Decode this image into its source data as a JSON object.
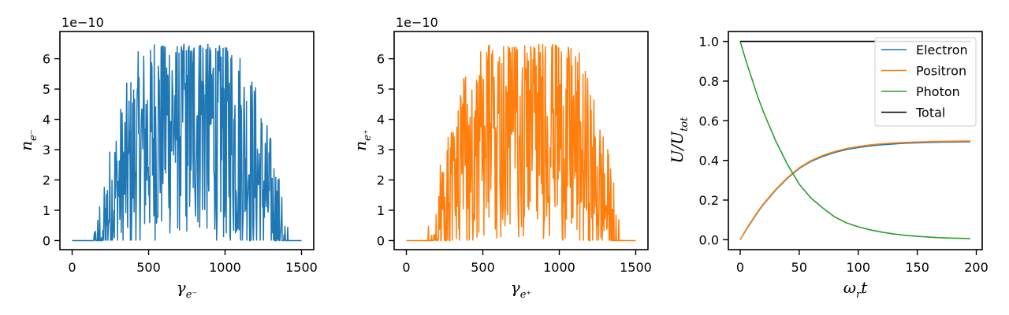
{
  "chart_data": [
    {
      "type": "line",
      "xlabel": "γ_e⁻",
      "ylabel": "n_e⁻",
      "xlim": [
        -80,
        1580
      ],
      "ylim": [
        -0.3,
        6.9
      ],
      "xticks": [
        0,
        500,
        1000,
        1500
      ],
      "yticks": [
        0,
        1,
        2,
        3,
        4,
        5,
        6
      ],
      "offset_text": "1e−10",
      "color": "#1f77b4",
      "series": [
        {
          "x_range": [
            0,
            1500
          ],
          "y_peak": 6.5,
          "shape": "noisy-bell"
        }
      ]
    },
    {
      "type": "line",
      "xlabel": "γ_e⁺",
      "ylabel": "n_e⁺",
      "xlim": [
        -80,
        1580
      ],
      "ylim": [
        -0.3,
        6.9
      ],
      "xticks": [
        0,
        500,
        1000,
        1500
      ],
      "yticks": [
        0,
        1,
        2,
        3,
        4,
        5,
        6
      ],
      "offset_text": "1e−10",
      "color": "#ff7f0e",
      "series": [
        {
          "x_range": [
            0,
            1500
          ],
          "y_peak": 6.5,
          "shape": "noisy-bell"
        }
      ]
    },
    {
      "type": "line",
      "xlabel": "ω_r t",
      "ylabel": "U/U_tot",
      "xlim": [
        -10,
        205
      ],
      "ylim": [
        -0.05,
        1.05
      ],
      "xticks": [
        0,
        50,
        100,
        150,
        200
      ],
      "yticks": [
        0.0,
        0.2,
        0.4,
        0.6,
        0.8,
        1.0
      ],
      "legend": "top-right",
      "series": [
        {
          "name": "Electron",
          "color": "#1f77b4",
          "x": [
            0,
            5,
            10,
            15,
            20,
            25,
            30,
            35,
            40,
            45,
            50,
            60,
            70,
            80,
            90,
            100,
            110,
            120,
            130,
            140,
            150,
            160,
            170,
            180,
            195
          ],
          "y": [
            0.0,
            0.05,
            0.095,
            0.14,
            0.18,
            0.215,
            0.25,
            0.28,
            0.31,
            0.335,
            0.36,
            0.395,
            0.42,
            0.44,
            0.455,
            0.465,
            0.473,
            0.479,
            0.483,
            0.487,
            0.489,
            0.491,
            0.492,
            0.493,
            0.494
          ]
        },
        {
          "name": "Positron",
          "color": "#ff7f0e",
          "x": [
            0,
            5,
            10,
            15,
            20,
            25,
            30,
            35,
            40,
            45,
            50,
            60,
            70,
            80,
            90,
            100,
            110,
            120,
            130,
            140,
            150,
            160,
            170,
            180,
            195
          ],
          "y": [
            0.0,
            0.052,
            0.098,
            0.143,
            0.183,
            0.218,
            0.253,
            0.283,
            0.313,
            0.338,
            0.363,
            0.399,
            0.425,
            0.445,
            0.46,
            0.47,
            0.478,
            0.484,
            0.488,
            0.491,
            0.493,
            0.495,
            0.496,
            0.497,
            0.498
          ]
        },
        {
          "name": "Photon",
          "color": "#2ca02c",
          "x": [
            0,
            5,
            10,
            15,
            20,
            25,
            30,
            35,
            40,
            45,
            50,
            60,
            70,
            80,
            90,
            100,
            110,
            120,
            130,
            140,
            150,
            160,
            170,
            180,
            195
          ],
          "y": [
            1.0,
            0.9,
            0.81,
            0.72,
            0.64,
            0.57,
            0.5,
            0.44,
            0.38,
            0.33,
            0.28,
            0.21,
            0.16,
            0.115,
            0.085,
            0.065,
            0.05,
            0.038,
            0.029,
            0.022,
            0.017,
            0.013,
            0.01,
            0.008,
            0.006
          ]
        },
        {
          "name": "Total",
          "color": "#000000",
          "x": [
            0,
            195
          ],
          "y": [
            1.0,
            1.0
          ]
        }
      ]
    }
  ]
}
